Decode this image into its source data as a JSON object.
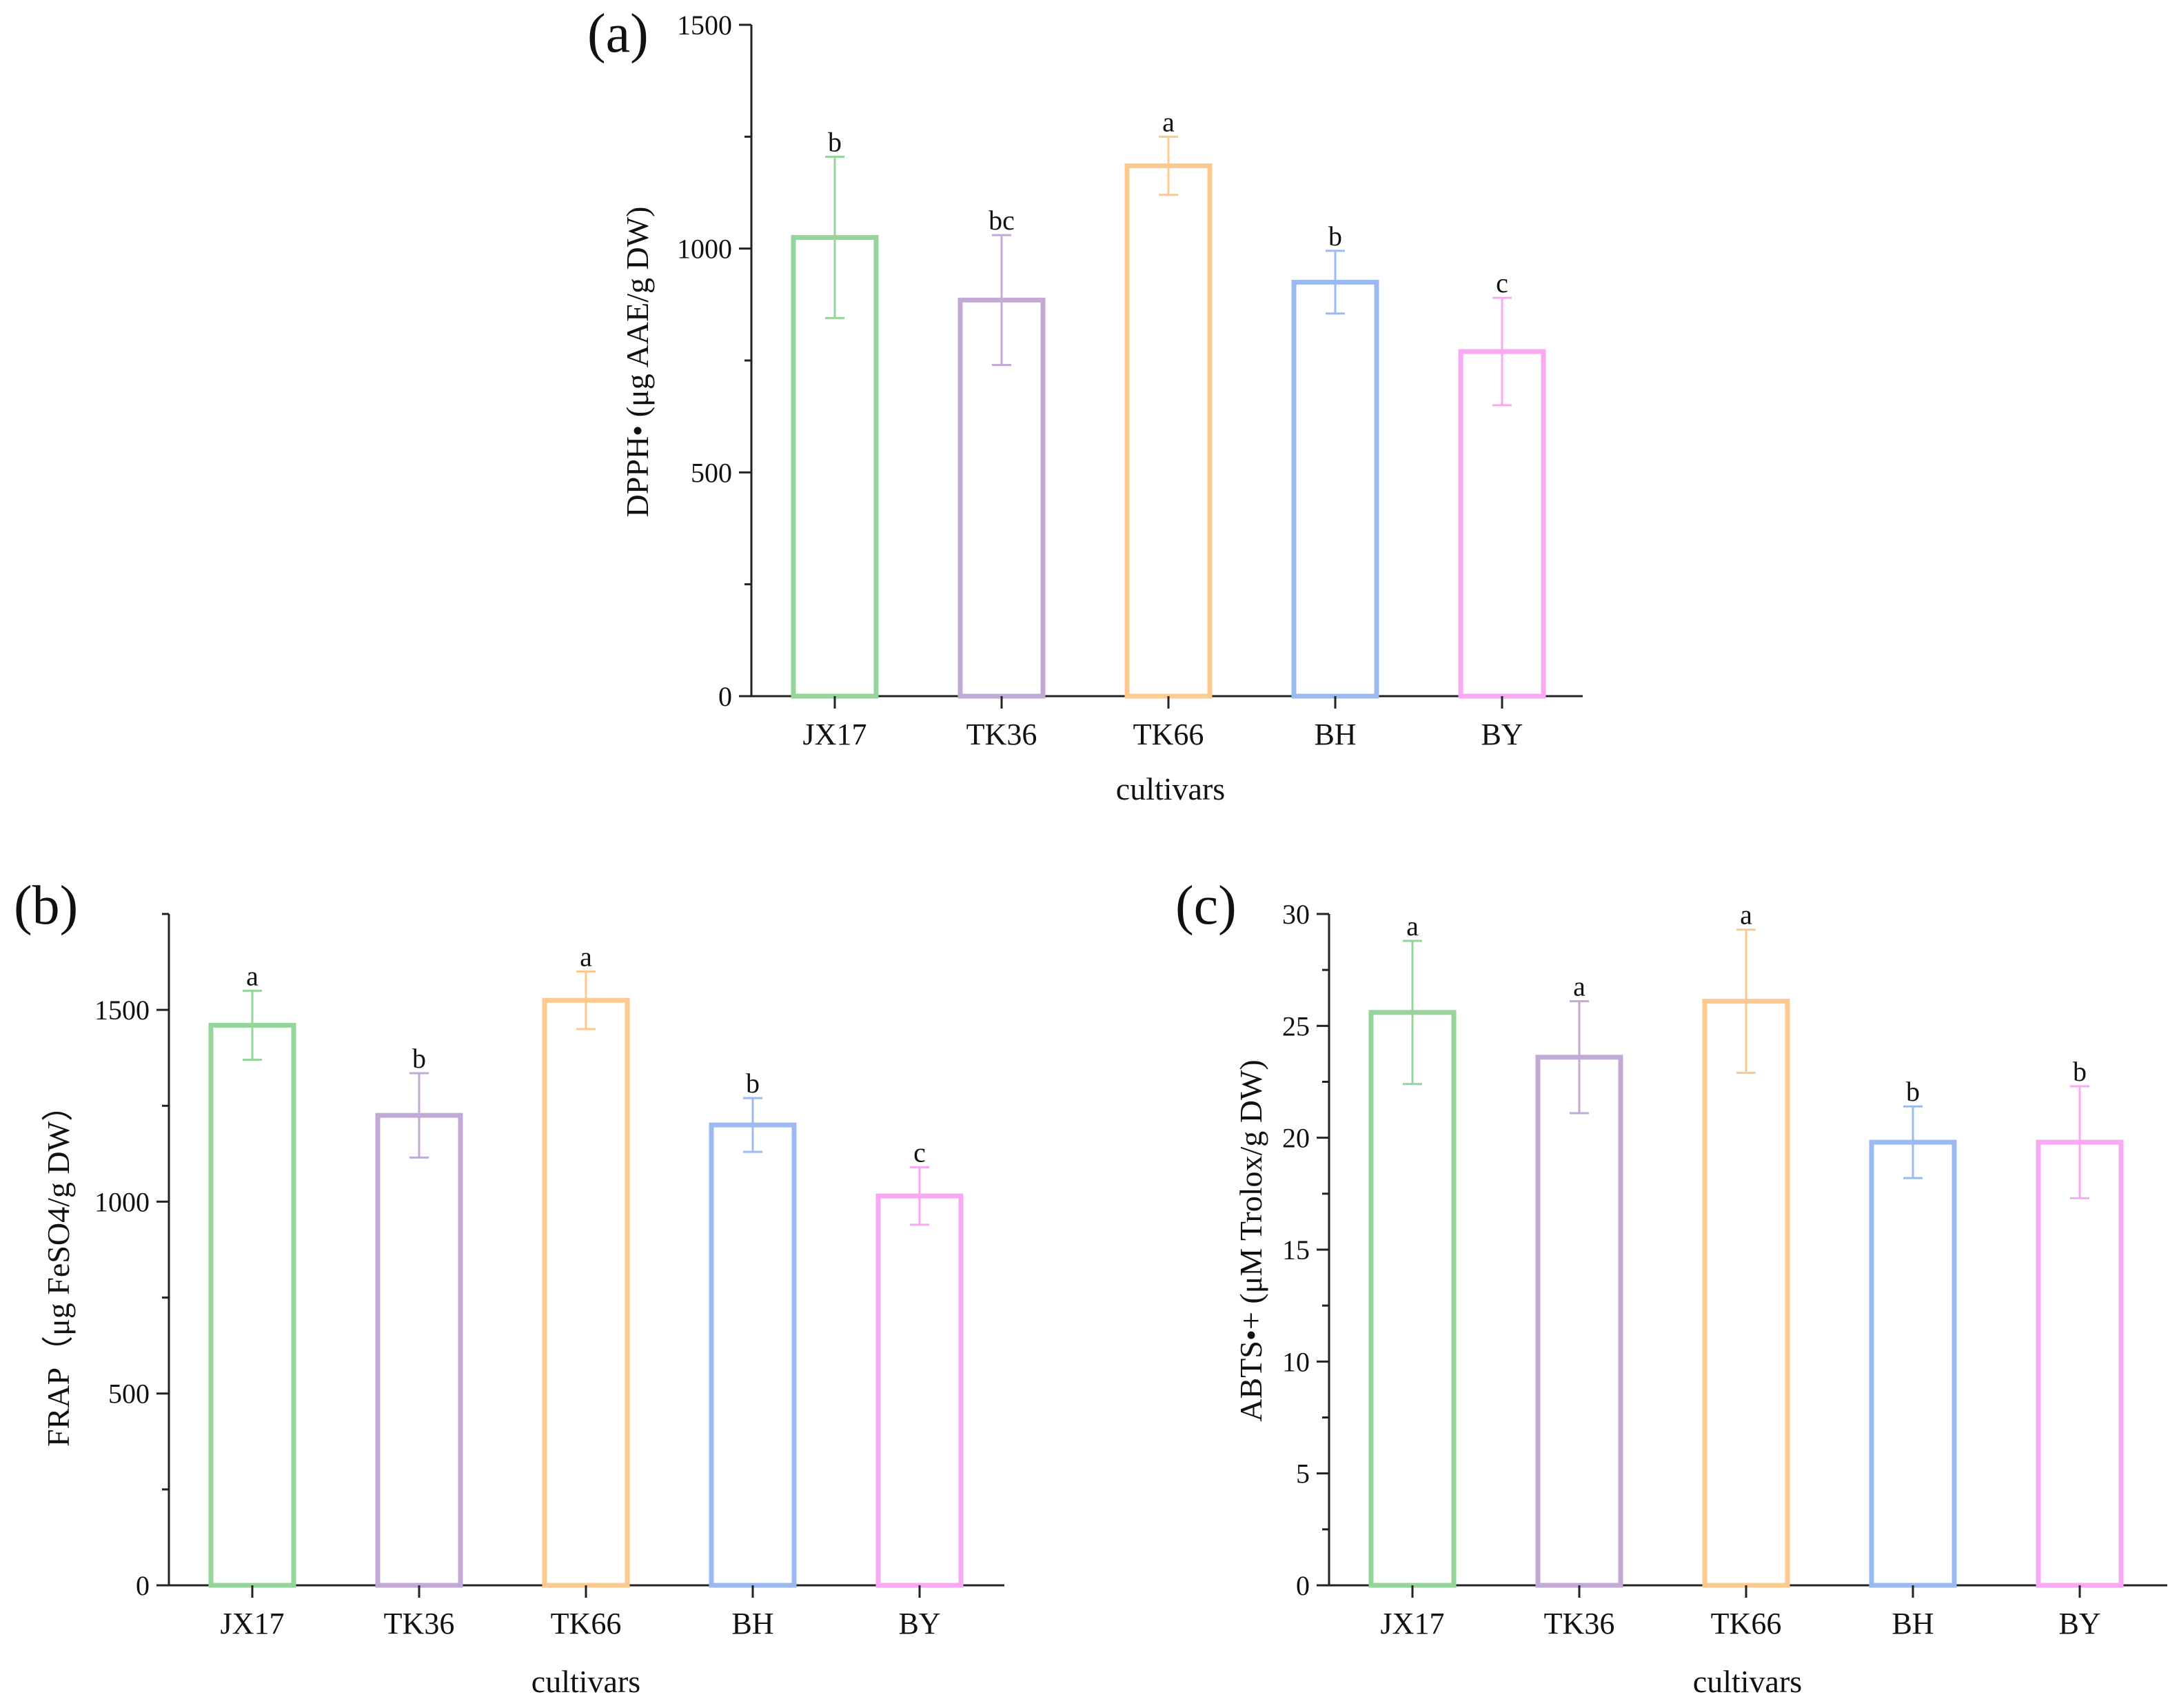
{
  "chart_data": [
    {
      "type": "bar",
      "panel": "(a)",
      "title": "",
      "xlabel": "cultivars",
      "ylabel": "DPPH• (μg AAE/g DW)",
      "ylim": [
        0,
        1500
      ],
      "yticks": [
        0,
        500,
        1000,
        1500
      ],
      "categories": [
        "JX17",
        "TK36",
        "TK66",
        "BH",
        "BY"
      ],
      "values": [
        1025,
        885,
        1185,
        925,
        770
      ],
      "errors": [
        180,
        145,
        65,
        70,
        120
      ],
      "significance": [
        "b",
        "bc",
        "a",
        "b",
        "c"
      ],
      "colors": [
        "#95d49a",
        "#c3aad6",
        "#fcc98e",
        "#9bbaf2",
        "#f9a8f4"
      ]
    },
    {
      "type": "bar",
      "panel": "(b)",
      "title": "",
      "xlabel": "cultivars",
      "ylabel": "FRAP（μg FeSO4/g DW）",
      "ylim": [
        0,
        1750
      ],
      "yticks": [
        0,
        500,
        1000,
        1500
      ],
      "categories": [
        "JX17",
        "TK36",
        "TK66",
        "BH",
        "BY"
      ],
      "values": [
        1460,
        1225,
        1525,
        1200,
        1015
      ],
      "errors": [
        90,
        110,
        75,
        70,
        75
      ],
      "significance": [
        "a",
        "b",
        "a",
        "b",
        "c"
      ],
      "colors": [
        "#95d49a",
        "#c3aad6",
        "#fcc98e",
        "#9bbaf2",
        "#f9a8f4"
      ]
    },
    {
      "type": "bar",
      "panel": "(c)",
      "title": "",
      "xlabel": "cultivars",
      "ylabel": "ABTS•+ (μM Trolox/g DW)",
      "ylim": [
        0,
        30
      ],
      "yticks": [
        0,
        5,
        10,
        15,
        20,
        25,
        30
      ],
      "categories": [
        "JX17",
        "TK36",
        "TK66",
        "BH",
        "BY"
      ],
      "values": [
        25.6,
        23.6,
        26.1,
        19.8,
        19.8
      ],
      "errors": [
        3.2,
        2.5,
        3.2,
        1.6,
        2.5
      ],
      "significance": [
        "a",
        "a",
        "a",
        "b",
        "b"
      ],
      "colors": [
        "#95d49a",
        "#c3aad6",
        "#fcc98e",
        "#9bbaf2",
        "#f9a8f4"
      ]
    }
  ]
}
